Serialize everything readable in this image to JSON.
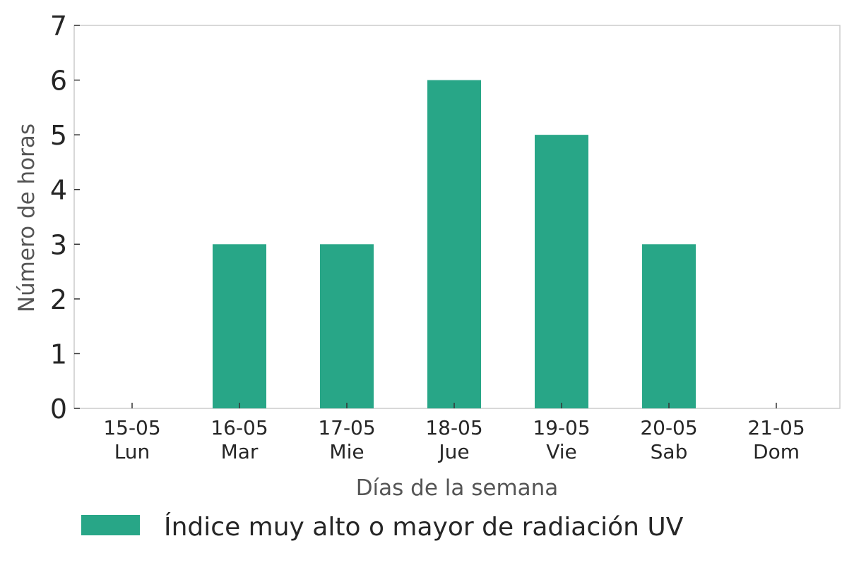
{
  "chart_data": {
    "type": "bar",
    "title": "",
    "xlabel": "Días de la semana",
    "ylabel": "Número de horas",
    "categories": [
      {
        "date": "15-05",
        "day": "Lun"
      },
      {
        "date": "16-05",
        "day": "Mar"
      },
      {
        "date": "17-05",
        "day": "Mie"
      },
      {
        "date": "18-05",
        "day": "Jue"
      },
      {
        "date": "19-05",
        "day": "Vie"
      },
      {
        "date": "20-05",
        "day": "Sab"
      },
      {
        "date": "21-05",
        "day": "Dom"
      }
    ],
    "series": [
      {
        "name": "Índice muy alto o mayor de radiación UV",
        "values": [
          0,
          3,
          3,
          6,
          5,
          3,
          0
        ],
        "color": "#28a687"
      }
    ],
    "ylim": [
      0,
      7
    ],
    "yticks": [
      "0",
      "1",
      "2",
      "3",
      "4",
      "5",
      "6",
      "7"
    ],
    "grid": false,
    "legend_position": "bottom"
  },
  "colors": {
    "axis_frame": "#cccccc",
    "tick_text": "#262626",
    "axis_label_text": "#555555"
  }
}
